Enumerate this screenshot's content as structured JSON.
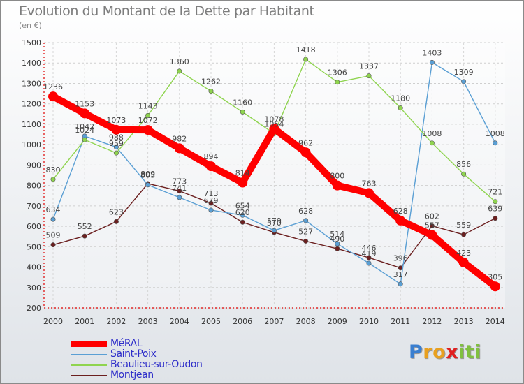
{
  "chart_data": {
    "type": "line",
    "title": "Evolution du Montant de la Dette par Habitant",
    "subtitle": "(en €)",
    "xlabel": "",
    "ylabel": "",
    "ylim": [
      200,
      1500
    ],
    "yticks": [
      200,
      300,
      400,
      500,
      600,
      700,
      800,
      900,
      1000,
      1100,
      1200,
      1300,
      1400,
      1500
    ],
    "categories": [
      "2000",
      "2001",
      "2002",
      "2003",
      "2004",
      "2005",
      "2006",
      "2007",
      "2008",
      "2009",
      "2010",
      "2011",
      "2012",
      "2013",
      "2014"
    ],
    "grid": true,
    "legend_position": "bottom-left",
    "series": [
      {
        "name": "MéRAL",
        "color": "#ff0000",
        "emphasis": true,
        "values": [
          1236,
          1153,
          1073,
          1072,
          982,
          894,
          814,
          1078,
          962,
          800,
          763,
          628,
          557,
          423,
          305
        ]
      },
      {
        "name": "Saint-Poix",
        "color": "#5a9fd4",
        "emphasis": false,
        "values": [
          634,
          1042,
          988,
          803,
          741,
          679,
          654,
          579,
          628,
          514,
          419,
          317,
          1403,
          1309,
          1008
        ]
      },
      {
        "name": "Beaulieu-sur-Oudon",
        "color": "#8fd44f",
        "emphasis": false,
        "values": [
          830,
          1024,
          959,
          1143,
          1360,
          1262,
          1160,
          1054,
          1418,
          1306,
          1337,
          1180,
          1008,
          856,
          721
        ]
      },
      {
        "name": "Montjean",
        "color": "#6b1f1f",
        "emphasis": false,
        "values": [
          509,
          552,
          623,
          809,
          773,
          713,
          620,
          570,
          527,
          490,
          446,
          396,
          602,
          559,
          639
        ]
      }
    ]
  },
  "brand": {
    "logo_letters": [
      "P",
      "r",
      "o",
      "x",
      "i",
      "t",
      "i"
    ],
    "logo_colors": [
      "#3a7fd0",
      "#e8a020",
      "#e8a020",
      "#e02020",
      "#80c040",
      "#80c040",
      "#80c040"
    ]
  }
}
